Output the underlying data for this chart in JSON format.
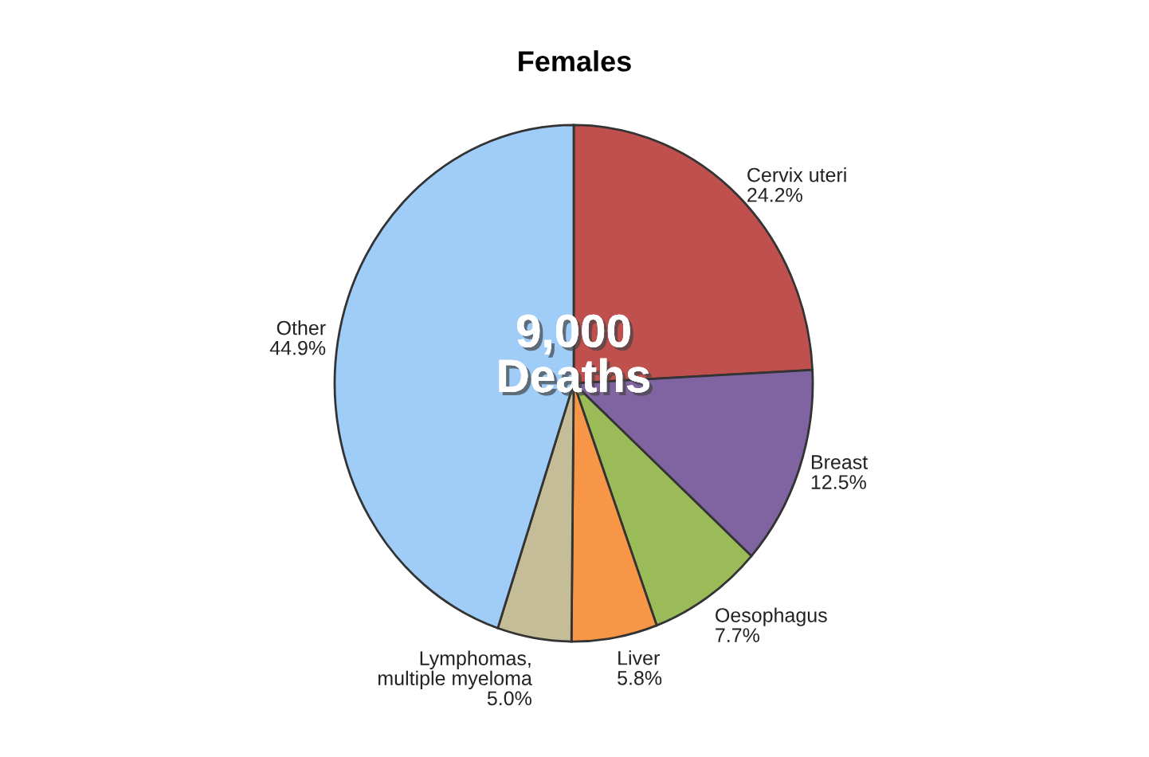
{
  "chart_data": {
    "type": "pie",
    "title": "Females",
    "categories": [
      "Cervix uteri",
      "Breast",
      "Oesophagus",
      "Liver",
      "Lymphomas, multiple myeloma",
      "Other"
    ],
    "values": [
      24.2,
      12.5,
      7.7,
      5.8,
      5.0,
      44.9
    ],
    "value_labels": [
      "24.2%",
      "12.5%",
      "7.7%",
      "5.8%",
      "5.0%",
      "44.9%"
    ],
    "colors": [
      "#c0504d",
      "#8064a2",
      "#9bbb59",
      "#f79646",
      "#c4bd97",
      "#9fcdf7"
    ],
    "annotations": [
      "9,000\nDeaths"
    ]
  }
}
